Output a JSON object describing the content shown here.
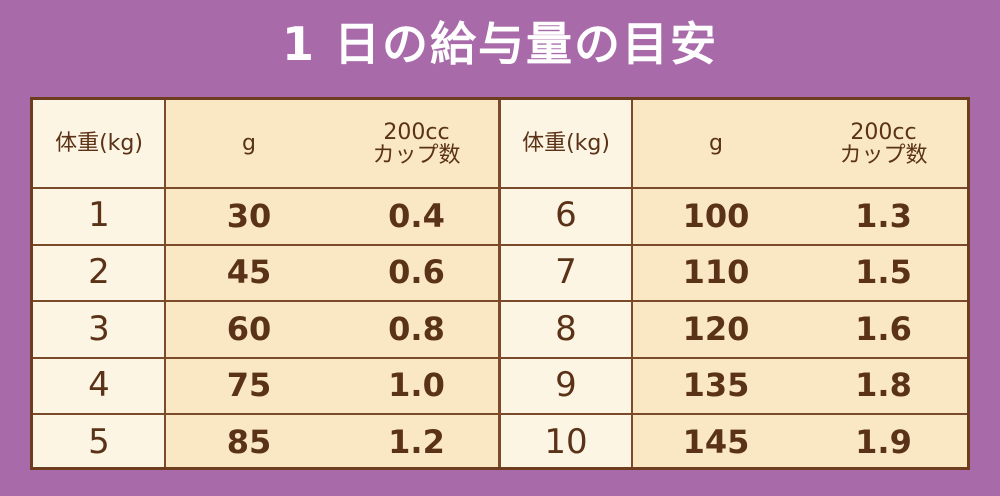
{
  "title": "1 日の給与量の目安",
  "tables": [
    {
      "headers": [
        "体重(kg)",
        "g",
        "200cc\nカップ数"
      ],
      "rows": [
        [
          "1",
          "30",
          "0.4"
        ],
        [
          "2",
          "45",
          "0.6"
        ],
        [
          "3",
          "60",
          "0.8"
        ],
        [
          "4",
          "75",
          "1.0"
        ],
        [
          "5",
          "85",
          "1.2"
        ]
      ]
    },
    {
      "headers": [
        "体重(kg)",
        "g",
        "200cc\nカップ数"
      ],
      "rows": [
        [
          "6",
          "100",
          "1.3"
        ],
        [
          "7",
          "110",
          "1.5"
        ],
        [
          "8",
          "120",
          "1.6"
        ],
        [
          "9",
          "135",
          "1.8"
        ],
        [
          "10",
          "145",
          "1.9"
        ]
      ]
    }
  ]
}
